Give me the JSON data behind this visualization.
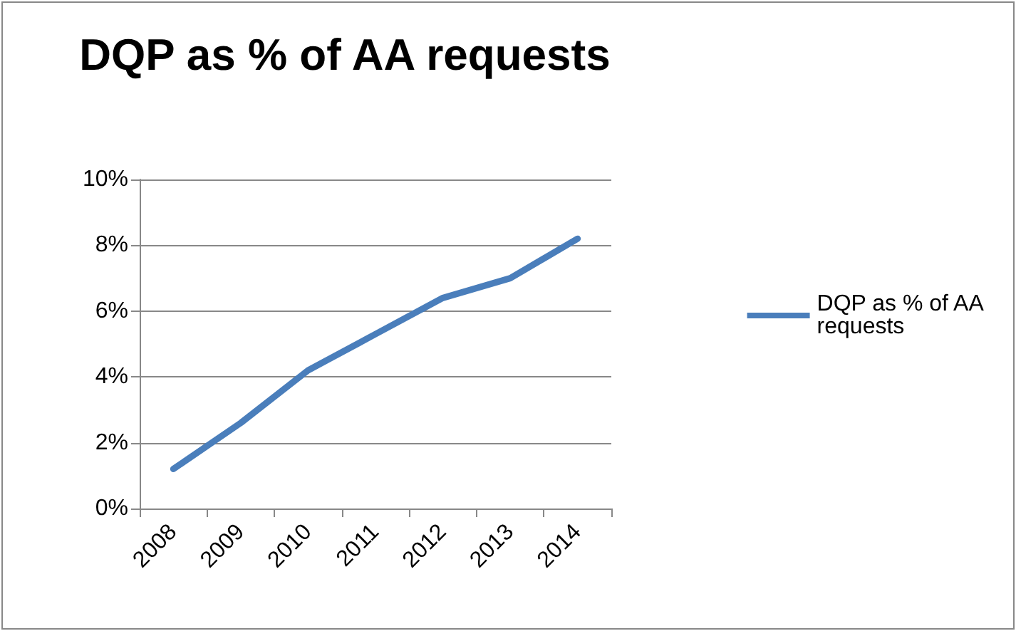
{
  "chart_data": {
    "type": "line",
    "title": "DQP as % of AA requests",
    "categories": [
      "2008",
      "2009",
      "2010",
      "2011",
      "2012",
      "2013",
      "2014"
    ],
    "series": [
      {
        "name": "DQP as % of AA requests",
        "color": "#4a7ebb",
        "values": [
          1.2,
          2.6,
          4.2,
          5.3,
          6.4,
          7.0,
          8.2
        ]
      }
    ],
    "ylim": [
      0,
      10
    ],
    "yticks": [
      {
        "value": 0,
        "label": "0%"
      },
      {
        "value": 2,
        "label": "2%"
      },
      {
        "value": 4,
        "label": "4%"
      },
      {
        "value": 6,
        "label": "6%"
      },
      {
        "value": 8,
        "label": "8%"
      },
      {
        "value": 10,
        "label": "10%"
      }
    ],
    "grid": "y",
    "legend": "right",
    "marker": "none",
    "line_style": "solid"
  }
}
